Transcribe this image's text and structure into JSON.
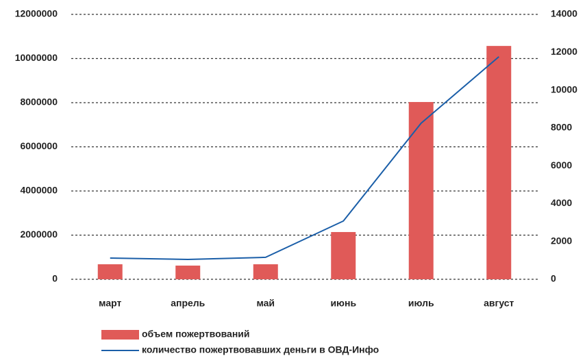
{
  "chart_data": {
    "type": "bar-line",
    "categories": [
      "март",
      "апрель",
      "май",
      "июнь",
      "июль",
      "август"
    ],
    "series": [
      {
        "name": "объем пожертвований",
        "type": "bar",
        "color": "#e05a58",
        "axis": "y",
        "values": [
          680000,
          620000,
          680000,
          2140000,
          8030000,
          10570000
        ]
      },
      {
        "name": "количество пожертвовавших деньги в ОВД-Инфо",
        "type": "line",
        "color": "#1a5ea8",
        "axis": "y2",
        "values": [
          1120,
          1050,
          1160,
          3080,
          8250,
          11760
        ]
      }
    ],
    "ylim": [
      0,
      12000000
    ],
    "yticks": [
      0,
      2000000,
      4000000,
      6000000,
      8000000,
      10000000,
      12000000
    ],
    "y2lim": [
      0,
      14000
    ],
    "y2ticks": [
      0,
      2000,
      4000,
      6000,
      8000,
      10000,
      12000,
      14000
    ],
    "grid": true,
    "legend": "bottom"
  }
}
